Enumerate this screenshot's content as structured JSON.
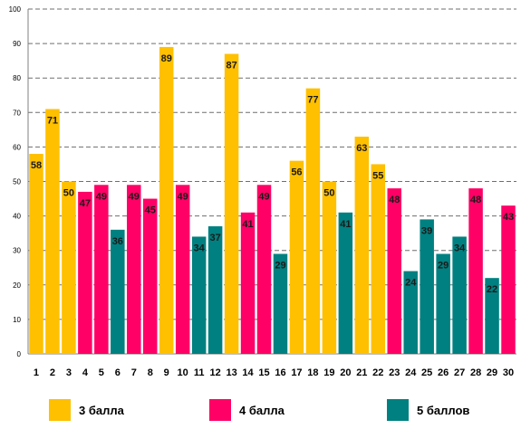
{
  "chart_data": {
    "type": "bar",
    "categories": [
      "1",
      "2",
      "3",
      "4",
      "5",
      "6",
      "7",
      "8",
      "9",
      "10",
      "11",
      "12",
      "13",
      "14",
      "15",
      "16",
      "17",
      "18",
      "19",
      "20",
      "21",
      "22",
      "23",
      "24",
      "25",
      "26",
      "27",
      "28",
      "29",
      "30"
    ],
    "values": [
      58,
      71,
      50,
      47,
      49,
      36,
      49,
      45,
      89,
      49,
      34,
      37,
      87,
      41,
      49,
      29,
      56,
      77,
      50,
      41,
      63,
      55,
      48,
      24,
      39,
      29,
      34,
      48,
      22,
      43
    ],
    "groups": [
      "3",
      "3",
      "3",
      "4",
      "4",
      "5",
      "4",
      "4",
      "3",
      "4",
      "5",
      "5",
      "3",
      "4",
      "4",
      "5",
      "3",
      "3",
      "3",
      "5",
      "3",
      "3",
      "4",
      "5",
      "5",
      "5",
      "5",
      "4",
      "5",
      "4"
    ],
    "ylim": [
      0,
      100
    ],
    "yticks": [
      0,
      10,
      20,
      30,
      40,
      50,
      60,
      70,
      80,
      90,
      100
    ],
    "grid": true,
    "legend": "bottom",
    "series": [
      {
        "key": "3",
        "name": "3 балла",
        "color": "#ffc000"
      },
      {
        "key": "4",
        "name": "4 балла",
        "color": "#ff0066"
      },
      {
        "key": "5",
        "name": "5 баллов",
        "color": "#008080"
      }
    ]
  }
}
